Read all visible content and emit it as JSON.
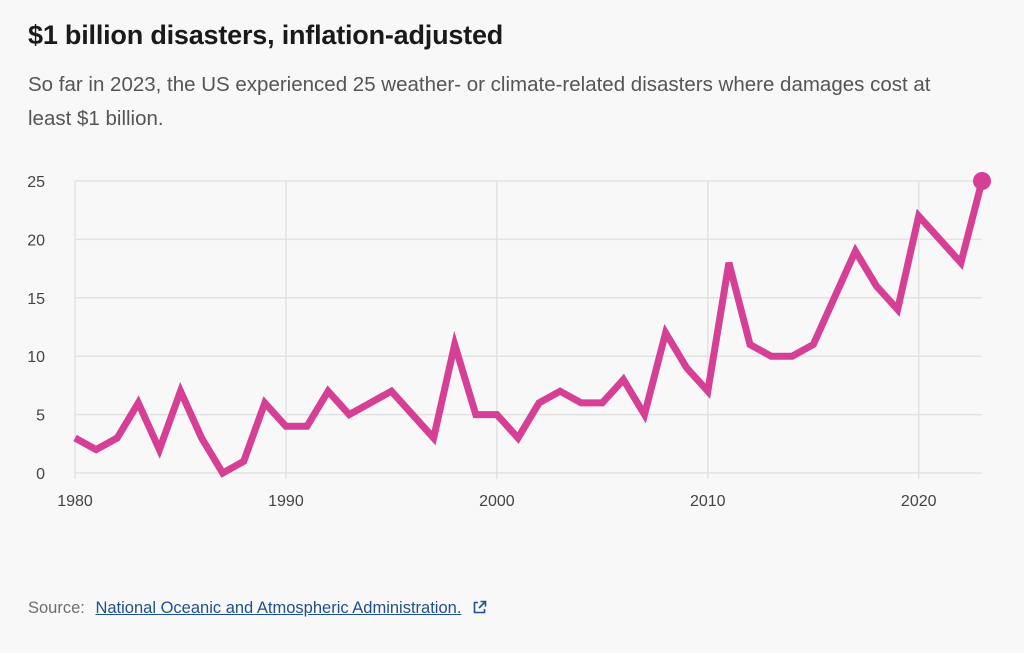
{
  "header": {
    "title": "$1 billion disasters, inflation-adjusted",
    "subtitle": "So far in 2023, the US experienced 25 weather- or climate-related disasters where damages cost at least $1 billion."
  },
  "footer": {
    "source_label": "Source:",
    "source_link": "National Oceanic and Atmospheric Administration.",
    "link_icon": "external-link-icon"
  },
  "colors": {
    "line": "#d53f95",
    "grid": "#e2e2e2",
    "axis_text": "#444444"
  },
  "chart_data": {
    "type": "line",
    "title": "$1 billion disasters, inflation-adjusted",
    "xlabel": "",
    "ylabel": "",
    "xlim": [
      1980,
      2023
    ],
    "ylim": [
      0,
      25
    ],
    "x_ticks": [
      1980,
      1990,
      2000,
      2010,
      2020
    ],
    "y_ticks": [
      0,
      5,
      10,
      15,
      20,
      25
    ],
    "grid": true,
    "series": [
      {
        "x": [
          1980,
          1981,
          1982,
          1983,
          1984,
          1985,
          1986,
          1987,
          1988,
          1989,
          1990,
          1991,
          1992,
          1993,
          1994,
          1995,
          1996,
          1997,
          1998,
          1999,
          2000,
          2001,
          2002,
          2003,
          2004,
          2005,
          2006,
          2007,
          2008,
          2009,
          2010,
          2011,
          2012,
          2013,
          2014,
          2015,
          2016,
          2017,
          2018,
          2019,
          2020,
          2021,
          2022,
          2023
        ],
        "values": [
          3,
          2,
          3,
          6,
          2,
          7,
          3,
          0,
          1,
          6,
          4,
          4,
          7,
          5,
          6,
          7,
          5,
          3,
          11,
          5,
          5,
          3,
          6,
          7,
          6,
          6,
          8,
          5,
          12,
          9,
          7,
          18,
          11,
          10,
          10,
          11,
          15,
          19,
          16,
          14,
          22,
          20,
          18,
          25
        ],
        "highlight_last": true
      }
    ]
  }
}
